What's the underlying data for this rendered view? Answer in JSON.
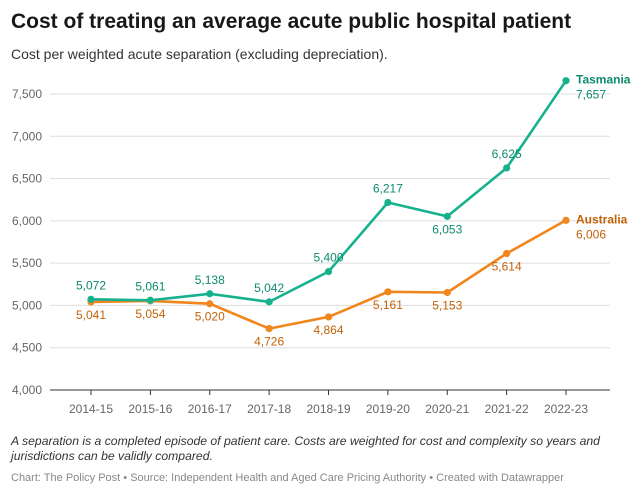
{
  "title": "Cost of treating an average acute public hospital patient",
  "subtitle": "Cost per weighted acute separation (excluding depreciation).",
  "note": "A separation is a completed episode of patient care. Costs are weighted for cost and complexity so years and jurisdictions can be validly compared.",
  "footer": {
    "chart_credit": "Chart: The Policy Post",
    "separator1": " • ",
    "source": "Source: Independent Health and Aged Care Pricing Authority",
    "separator2": " • ",
    "created": "Created with Datawrapper"
  },
  "colors": {
    "tasmania": "#17b18e",
    "australia": "#f0861c",
    "grid": "#dddddd",
    "axis_text": "#666666"
  },
  "chart_data": {
    "type": "line",
    "categories": [
      "2014-15",
      "2015-16",
      "2016-17",
      "2017-18",
      "2018-19",
      "2019-20",
      "2020-21",
      "2021-22",
      "2022-23"
    ],
    "ylim": [
      4000,
      7500
    ],
    "yticks": [
      4000,
      4500,
      5000,
      5500,
      6000,
      6500,
      7000,
      7500
    ],
    "ytick_labels": [
      "4,000",
      "4,500",
      "5,000",
      "5,500",
      "6,000",
      "6,500",
      "7,000",
      "7,500"
    ],
    "series": [
      {
        "name": "Tasmania",
        "values": [
          5072,
          5061,
          5138,
          5042,
          5400,
          6217,
          6053,
          6625,
          7657
        ],
        "labels": [
          "5,072",
          "5,061",
          "5,138",
          "5,042",
          "5,400",
          "6,217",
          "6,053",
          "6,625",
          "7,657"
        ],
        "label_pos": [
          "above",
          "above",
          "above",
          "above",
          "above",
          "above",
          "below",
          "above",
          "right"
        ]
      },
      {
        "name": "Australia",
        "values": [
          5041,
          5054,
          5020,
          4726,
          4864,
          5161,
          5153,
          5614,
          6006
        ],
        "labels": [
          "5,041",
          "5,054",
          "5,020",
          "4,726",
          "4,864",
          "5,161",
          "5,153",
          "5,614",
          "6,006"
        ],
        "label_pos": [
          "below",
          "below",
          "below",
          "below",
          "below",
          "below",
          "below",
          "below",
          "right"
        ]
      }
    ],
    "title": "Cost of treating an average acute public hospital patient",
    "xlabel": "",
    "ylabel": ""
  }
}
